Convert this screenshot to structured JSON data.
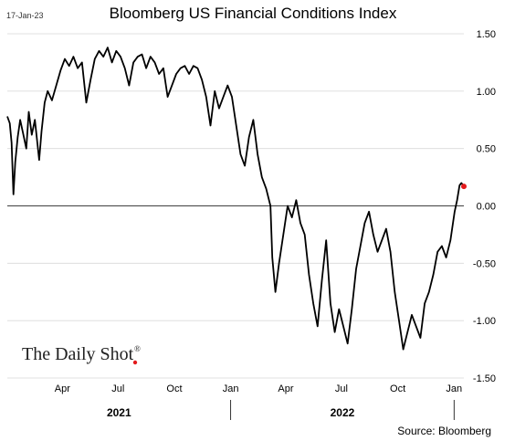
{
  "date_stamp": "17-Jan-23",
  "watermark": {
    "text": "The Daily Shot",
    "registered": "®",
    "accent_color": "#e31a1c"
  },
  "source": "Source: Bloomberg",
  "colors": {
    "line": "#000000",
    "last_point": "#e31a1c",
    "zero_line": "#000000",
    "grid": "#d9d9d9"
  },
  "chart_data": {
    "type": "line",
    "title": "Bloomberg US Financial Conditions Index",
    "xlabel": "",
    "ylabel": "",
    "ylim": [
      -1.5,
      1.5
    ],
    "xlim": [
      "2021-01-01",
      "2023-01-17"
    ],
    "grid": "horizontal",
    "y_ticks": [
      1.5,
      1.0,
      0.5,
      0.0,
      -0.5,
      -1.0,
      -1.5
    ],
    "y_tick_labels": [
      "1.50",
      "1.00",
      "0.50",
      "0.00",
      "-0.50",
      "-1.00",
      "-1.50"
    ],
    "x_ticks": [
      {
        "date": "2021-04-01",
        "label": "Apr"
      },
      {
        "date": "2021-07-01",
        "label": "Jul"
      },
      {
        "date": "2021-10-01",
        "label": "Oct"
      },
      {
        "date": "2022-01-01",
        "label": "Jan"
      },
      {
        "date": "2022-04-01",
        "label": "Apr"
      },
      {
        "date": "2022-07-01",
        "label": "Jul"
      },
      {
        "date": "2022-10-01",
        "label": "Oct"
      },
      {
        "date": "2023-01-01",
        "label": "Jan"
      }
    ],
    "year_labels": [
      {
        "label": "2021",
        "from": "2021-01-01",
        "to": "2022-01-01"
      },
      {
        "label": "2022",
        "from": "2022-01-01",
        "to": "2023-01-01"
      }
    ],
    "series": [
      {
        "values": [
          [
            "2021-01-01",
            0.78
          ],
          [
            "2021-01-05",
            0.72
          ],
          [
            "2021-01-08",
            0.55
          ],
          [
            "2021-01-11",
            0.1
          ],
          [
            "2021-01-14",
            0.38
          ],
          [
            "2021-01-18",
            0.6
          ],
          [
            "2021-01-22",
            0.75
          ],
          [
            "2021-01-26",
            0.65
          ],
          [
            "2021-02-01",
            0.5
          ],
          [
            "2021-02-05",
            0.82
          ],
          [
            "2021-02-10",
            0.62
          ],
          [
            "2021-02-15",
            0.75
          ],
          [
            "2021-02-22",
            0.4
          ],
          [
            "2021-02-26",
            0.65
          ],
          [
            "2021-03-03",
            0.9
          ],
          [
            "2021-03-08",
            1.0
          ],
          [
            "2021-03-15",
            0.92
          ],
          [
            "2021-03-22",
            1.05
          ],
          [
            "2021-03-29",
            1.18
          ],
          [
            "2021-04-05",
            1.28
          ],
          [
            "2021-04-12",
            1.22
          ],
          [
            "2021-04-19",
            1.3
          ],
          [
            "2021-04-26",
            1.2
          ],
          [
            "2021-05-03",
            1.25
          ],
          [
            "2021-05-10",
            0.9
          ],
          [
            "2021-05-17",
            1.1
          ],
          [
            "2021-05-24",
            1.28
          ],
          [
            "2021-05-31",
            1.35
          ],
          [
            "2021-06-07",
            1.3
          ],
          [
            "2021-06-14",
            1.38
          ],
          [
            "2021-06-21",
            1.25
          ],
          [
            "2021-06-28",
            1.35
          ],
          [
            "2021-07-05",
            1.3
          ],
          [
            "2021-07-12",
            1.2
          ],
          [
            "2021-07-19",
            1.05
          ],
          [
            "2021-07-26",
            1.25
          ],
          [
            "2021-08-02",
            1.3
          ],
          [
            "2021-08-09",
            1.32
          ],
          [
            "2021-08-16",
            1.2
          ],
          [
            "2021-08-23",
            1.3
          ],
          [
            "2021-08-30",
            1.25
          ],
          [
            "2021-09-06",
            1.15
          ],
          [
            "2021-09-13",
            1.2
          ],
          [
            "2021-09-20",
            0.95
          ],
          [
            "2021-09-27",
            1.05
          ],
          [
            "2021-10-04",
            1.15
          ],
          [
            "2021-10-11",
            1.2
          ],
          [
            "2021-10-18",
            1.22
          ],
          [
            "2021-10-25",
            1.15
          ],
          [
            "2021-11-01",
            1.22
          ],
          [
            "2021-11-08",
            1.2
          ],
          [
            "2021-11-15",
            1.1
          ],
          [
            "2021-11-22",
            0.95
          ],
          [
            "2021-11-29",
            0.7
          ],
          [
            "2021-12-06",
            1.0
          ],
          [
            "2021-12-13",
            0.85
          ],
          [
            "2021-12-20",
            0.95
          ],
          [
            "2021-12-27",
            1.05
          ],
          [
            "2022-01-03",
            0.95
          ],
          [
            "2022-01-10",
            0.7
          ],
          [
            "2022-01-17",
            0.45
          ],
          [
            "2022-01-24",
            0.35
          ],
          [
            "2022-01-31",
            0.6
          ],
          [
            "2022-02-07",
            0.75
          ],
          [
            "2022-02-14",
            0.45
          ],
          [
            "2022-02-21",
            0.25
          ],
          [
            "2022-02-28",
            0.15
          ],
          [
            "2022-03-07",
            0.0
          ],
          [
            "2022-03-10",
            -0.45
          ],
          [
            "2022-03-15",
            -0.75
          ],
          [
            "2022-03-21",
            -0.5
          ],
          [
            "2022-03-28",
            -0.25
          ],
          [
            "2022-04-04",
            0.0
          ],
          [
            "2022-04-11",
            -0.1
          ],
          [
            "2022-04-18",
            0.05
          ],
          [
            "2022-04-25",
            -0.15
          ],
          [
            "2022-05-02",
            -0.25
          ],
          [
            "2022-05-09",
            -0.6
          ],
          [
            "2022-05-16",
            -0.85
          ],
          [
            "2022-05-23",
            -1.05
          ],
          [
            "2022-05-30",
            -0.65
          ],
          [
            "2022-06-06",
            -0.3
          ],
          [
            "2022-06-13",
            -0.85
          ],
          [
            "2022-06-20",
            -1.1
          ],
          [
            "2022-06-27",
            -0.9
          ],
          [
            "2022-07-04",
            -1.05
          ],
          [
            "2022-07-11",
            -1.2
          ],
          [
            "2022-07-18",
            -0.9
          ],
          [
            "2022-07-25",
            -0.55
          ],
          [
            "2022-08-01",
            -0.35
          ],
          [
            "2022-08-08",
            -0.15
          ],
          [
            "2022-08-15",
            -0.05
          ],
          [
            "2022-08-22",
            -0.25
          ],
          [
            "2022-08-29",
            -0.4
          ],
          [
            "2022-09-05",
            -0.3
          ],
          [
            "2022-09-12",
            -0.2
          ],
          [
            "2022-09-19",
            -0.4
          ],
          [
            "2022-09-26",
            -0.75
          ],
          [
            "2022-10-03",
            -1.0
          ],
          [
            "2022-10-10",
            -1.25
          ],
          [
            "2022-10-17",
            -1.1
          ],
          [
            "2022-10-24",
            -0.95
          ],
          [
            "2022-10-31",
            -1.05
          ],
          [
            "2022-11-07",
            -1.15
          ],
          [
            "2022-11-14",
            -0.85
          ],
          [
            "2022-11-21",
            -0.75
          ],
          [
            "2022-11-28",
            -0.6
          ],
          [
            "2022-12-05",
            -0.4
          ],
          [
            "2022-12-12",
            -0.35
          ],
          [
            "2022-12-19",
            -0.45
          ],
          [
            "2022-12-26",
            -0.3
          ],
          [
            "2023-01-02",
            -0.05
          ],
          [
            "2023-01-06",
            0.05
          ],
          [
            "2023-01-10",
            0.18
          ],
          [
            "2023-01-13",
            0.2
          ],
          [
            "2023-01-17",
            0.17
          ]
        ]
      }
    ],
    "last_point": {
      "date": "2023-01-17",
      "value": 0.17
    }
  }
}
